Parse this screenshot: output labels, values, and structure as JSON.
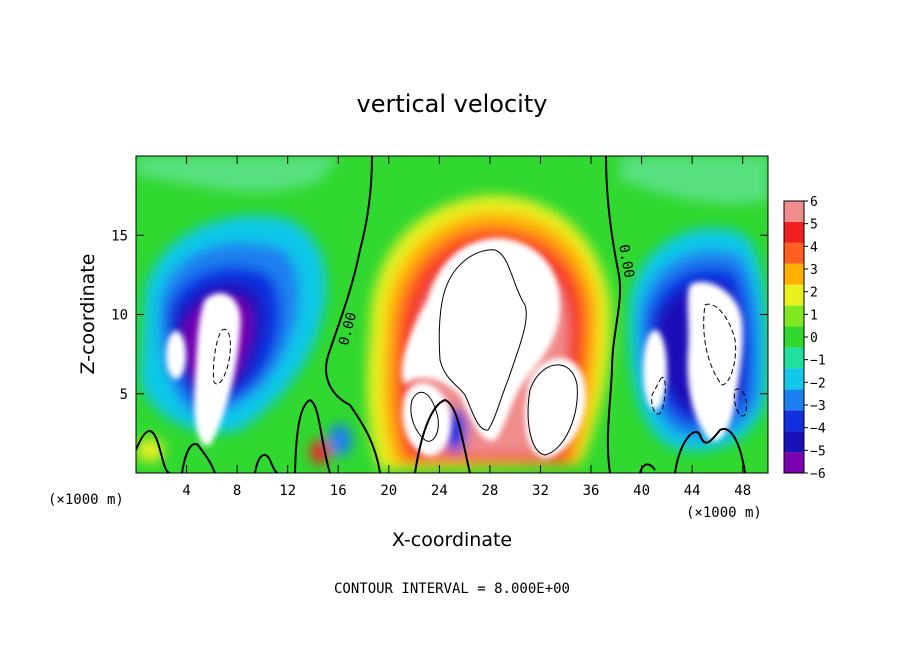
{
  "chart_data": {
    "type": "heatmap",
    "title": "vertical velocity",
    "xlabel": "X-coordinate",
    "ylabel": "Z-coordinate",
    "x_unit_label": "(×1000 m)",
    "x_unit_label_right": "(×1000 m)",
    "xlim": [
      0,
      50
    ],
    "ylim": [
      0,
      20
    ],
    "x_ticks": [
      4,
      8,
      12,
      16,
      20,
      24,
      28,
      32,
      36,
      40,
      44,
      48
    ],
    "y_ticks": [
      5,
      10,
      15
    ],
    "colorbar": {
      "levels": [
        -6,
        -5,
        -4,
        -3,
        -2,
        -1,
        0,
        1,
        2,
        3,
        4,
        5,
        6
      ],
      "colors": [
        "#7a00b0",
        "#1a10b8",
        "#1030e0",
        "#1a80f0",
        "#10c8e8",
        "#20e0a0",
        "#30d830",
        "#80e820",
        "#e8f020",
        "#ffb000",
        "#ff6020",
        "#f02020",
        "#f08c8c"
      ],
      "tick_labels": [
        "6",
        "5",
        "4",
        "3",
        "2",
        "1",
        "0",
        "−1",
        "−2",
        "−3",
        "−4",
        "−5",
        "−6"
      ]
    },
    "contour_label": "0.00",
    "contour_interval_text": "CONTOUR INTERVAL = 8.000E+00",
    "features": [
      {
        "kind": "updraft",
        "x": 29,
        "z": 9,
        "value": 6
      },
      {
        "kind": "downdraft",
        "x": 7,
        "z": 8,
        "value": -6
      },
      {
        "kind": "downdraft",
        "x": 45,
        "z": 8,
        "value": -6
      }
    ]
  }
}
